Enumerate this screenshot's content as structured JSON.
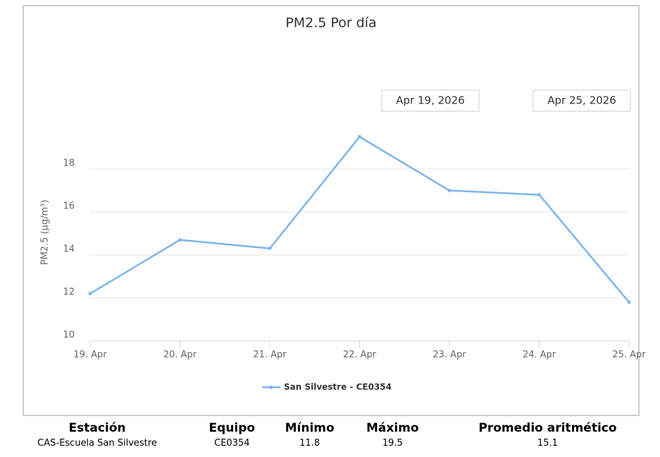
{
  "chart_data": {
    "type": "line",
    "title": "PM2.5 Por día",
    "y_label": "PM2.5 (µg/m³)",
    "categories": [
      "19. Apr",
      "20. Apr",
      "21. Apr",
      "22. Apr",
      "23. Apr",
      "24. Apr",
      "25. Apr"
    ],
    "series": [
      {
        "name": "San Silvestre - CE0354",
        "color": "#7cb5ec",
        "values": [
          12.2,
          14.7,
          14.3,
          19.5,
          17.0,
          16.8,
          11.8
        ]
      }
    ],
    "ylim": [
      10,
      20
    ],
    "yticks": [
      10,
      12,
      14,
      16,
      18
    ],
    "grid": true,
    "range_from": "Apr 19, 2026",
    "range_to": "Apr 25, 2026"
  },
  "table": {
    "headers": [
      "Estación",
      "Equipo",
      "Mínimo",
      "Máximo",
      "Promedio aritmético"
    ],
    "rows": [
      [
        "CAS-Escuela San Silvestre",
        "CE0354",
        "11.8",
        "19.5",
        "15.1"
      ]
    ]
  }
}
